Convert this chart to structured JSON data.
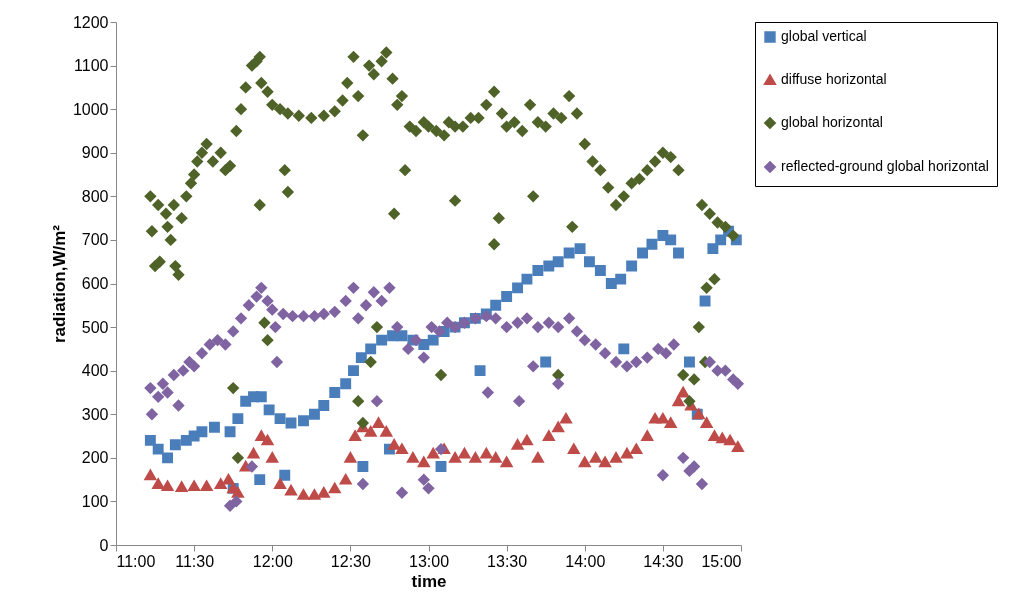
{
  "chart_data": {
    "type": "scatter",
    "xlabel": "time",
    "ylabel": "radiation,W/m²",
    "xlim": [
      11,
      15
    ],
    "ylim": [
      0,
      1200
    ],
    "xticks": [
      {
        "value": 11,
        "label": "11:00"
      },
      {
        "value": 11.5,
        "label": "11:30"
      },
      {
        "value": 12,
        "label": "12:00"
      },
      {
        "value": 12.5,
        "label": "12:30"
      },
      {
        "value": 13,
        "label": "13:00"
      },
      {
        "value": 13.5,
        "label": "13:30"
      },
      {
        "value": 14,
        "label": "14:00"
      },
      {
        "value": 14.5,
        "label": "14:30"
      },
      {
        "value": 15,
        "label": "15:00"
      }
    ],
    "yticks": [
      0,
      100,
      200,
      300,
      400,
      500,
      600,
      700,
      800,
      900,
      1000,
      1100,
      1200
    ],
    "grid": false,
    "legend": "right",
    "series": [
      {
        "name": "global vertical",
        "color": "#4a7ebb",
        "marker": "square",
        "x": [
          11.22,
          11.27,
          11.33,
          11.38,
          11.45,
          11.5,
          11.55,
          11.63,
          11.73,
          11.78,
          11.83,
          11.88,
          11.93,
          11.98,
          12.05,
          12.12,
          12.2,
          12.27,
          12.33,
          12.4,
          12.47,
          12.52,
          12.57,
          12.63,
          12.7,
          12.77,
          12.83,
          12.9,
          12.97,
          13.03,
          13.1,
          13.17,
          13.23,
          13.3,
          13.37,
          13.43,
          13.5,
          13.57,
          13.63,
          13.7,
          13.77,
          13.83,
          13.9,
          13.97,
          14.03,
          14.1,
          14.17,
          14.23,
          14.3,
          14.37,
          14.43,
          14.5,
          14.55,
          14.6,
          14.67,
          14.72,
          14.77,
          14.82,
          14.87,
          14.92,
          14.97,
          11.75,
          11.92,
          12.08,
          12.58,
          12.75,
          13.08,
          13.33,
          13.75,
          14.25
        ],
        "values": [
          240,
          220,
          200,
          230,
          240,
          250,
          260,
          270,
          260,
          290,
          330,
          340,
          340,
          310,
          290,
          280,
          285,
          300,
          320,
          350,
          370,
          400,
          430,
          450,
          470,
          480,
          480,
          470,
          460,
          470,
          490,
          500,
          510,
          520,
          530,
          550,
          570,
          590,
          610,
          630,
          640,
          650,
          670,
          680,
          650,
          630,
          600,
          610,
          640,
          670,
          690,
          710,
          700,
          670,
          420,
          300,
          560,
          680,
          700,
          720,
          700,
          130,
          150,
          160,
          180,
          220,
          180,
          400,
          420,
          450
        ]
      },
      {
        "name": "diffuse horizontal",
        "color": "#be4b48",
        "marker": "triangle",
        "x": [
          11.22,
          11.27,
          11.33,
          11.42,
          11.5,
          11.58,
          11.67,
          11.72,
          11.75,
          11.78,
          11.83,
          11.88,
          11.93,
          11.97,
          12.0,
          12.05,
          12.12,
          12.2,
          12.27,
          12.33,
          12.4,
          12.47,
          12.5,
          12.53,
          12.58,
          12.63,
          12.68,
          12.73,
          12.78,
          12.83,
          12.9,
          12.97,
          13.03,
          13.1,
          13.17,
          13.23,
          13.3,
          13.37,
          13.43,
          13.5,
          13.57,
          13.63,
          13.7,
          13.77,
          13.83,
          13.88,
          13.93,
          14.0,
          14.07,
          14.13,
          14.2,
          14.27,
          14.33,
          14.4,
          14.45,
          14.5,
          14.55,
          14.6,
          14.63,
          14.68,
          14.73,
          14.78,
          14.83,
          14.88,
          14.93,
          14.98
        ],
        "values": [
          160,
          140,
          135,
          133,
          135,
          135,
          140,
          150,
          130,
          120,
          180,
          210,
          250,
          240,
          200,
          140,
          125,
          115,
          115,
          120,
          130,
          150,
          200,
          250,
          270,
          260,
          280,
          260,
          230,
          220,
          200,
          190,
          210,
          220,
          200,
          210,
          200,
          210,
          200,
          190,
          230,
          240,
          200,
          250,
          270,
          290,
          220,
          190,
          200,
          190,
          200,
          210,
          220,
          250,
          290,
          290,
          280,
          330,
          350,
          320,
          300,
          280,
          250,
          245,
          240,
          225
        ]
      },
      {
        "name": "global horizontal",
        "color": "#4f6228",
        "marker": "diamond",
        "x": [
          11.22,
          11.23,
          11.25,
          11.27,
          11.28,
          11.32,
          11.33,
          11.35,
          11.37,
          11.38,
          11.4,
          11.42,
          11.45,
          11.48,
          11.5,
          11.52,
          11.55,
          11.58,
          11.62,
          11.67,
          11.7,
          11.73,
          11.77,
          11.8,
          11.83,
          11.87,
          11.9,
          11.92,
          11.93,
          11.97,
          12.0,
          12.05,
          12.1,
          12.17,
          12.25,
          12.33,
          12.4,
          12.45,
          12.48,
          12.52,
          12.55,
          12.58,
          12.62,
          12.65,
          12.7,
          12.73,
          12.77,
          12.8,
          12.83,
          12.88,
          12.92,
          12.97,
          13.0,
          13.05,
          13.1,
          13.13,
          13.17,
          13.22,
          13.27,
          13.32,
          13.37,
          13.42,
          13.47,
          13.5,
          13.55,
          13.6,
          13.65,
          13.7,
          13.75,
          13.8,
          13.85,
          13.9,
          13.95,
          14.0,
          14.05,
          14.1,
          14.15,
          14.2,
          14.25,
          14.3,
          14.35,
          14.4,
          14.45,
          14.5,
          14.55,
          14.6,
          14.75,
          14.8,
          14.85,
          14.9,
          14.95,
          11.75,
          11.78,
          11.92,
          11.95,
          11.97,
          12.08,
          12.1,
          12.55,
          12.58,
          12.63,
          12.67,
          12.78,
          12.85,
          13.08,
          13.17,
          13.42,
          13.45,
          13.67,
          13.83,
          13.92,
          14.63,
          14.67,
          14.7,
          14.73,
          14.77,
          14.78,
          14.83
        ],
        "values": [
          800,
          720,
          640,
          780,
          650,
          760,
          730,
          700,
          780,
          640,
          620,
          750,
          800,
          830,
          850,
          880,
          900,
          920,
          880,
          900,
          860,
          870,
          950,
          1000,
          1050,
          1100,
          1110,
          1120,
          1060,
          1040,
          1010,
          1000,
          990,
          985,
          980,
          985,
          995,
          1020,
          1060,
          1120,
          1030,
          940,
          1100,
          1080,
          1110,
          1130,
          1070,
          1010,
          1030,
          960,
          950,
          970,
          960,
          950,
          940,
          970,
          960,
          960,
          980,
          980,
          1010,
          1040,
          990,
          960,
          970,
          950,
          1010,
          970,
          960,
          990,
          980,
          1030,
          990,
          920,
          880,
          860,
          820,
          780,
          800,
          830,
          840,
          860,
          880,
          900,
          890,
          860,
          780,
          760,
          740,
          730,
          710,
          360,
          200,
          780,
          510,
          470,
          860,
          810,
          330,
          280,
          420,
          500,
          760,
          860,
          390,
          790,
          690,
          750,
          800,
          390,
          730,
          390,
          330,
          380,
          500,
          420,
          590,
          610
        ]
      },
      {
        "name": "reflected-ground global horizontal",
        "color": "#8064a2",
        "marker": "diamond",
        "x": [
          11.22,
          11.23,
          11.27,
          11.3,
          11.33,
          11.37,
          11.4,
          11.43,
          11.47,
          11.5,
          11.55,
          11.6,
          11.65,
          11.7,
          11.75,
          11.8,
          11.85,
          11.9,
          11.93,
          11.97,
          12.0,
          12.07,
          12.13,
          12.2,
          12.27,
          12.33,
          12.4,
          12.47,
          12.52,
          12.55,
          12.6,
          12.65,
          12.7,
          12.75,
          12.8,
          12.87,
          12.92,
          12.97,
          13.02,
          13.07,
          13.12,
          13.17,
          13.23,
          13.3,
          13.37,
          13.43,
          13.5,
          13.57,
          13.63,
          13.7,
          13.77,
          13.83,
          13.9,
          13.95,
          14.0,
          14.07,
          14.13,
          14.2,
          14.27,
          14.33,
          14.4,
          14.47,
          14.52,
          14.57,
          14.63,
          14.67,
          14.7,
          14.75,
          14.8,
          14.85,
          14.9,
          14.95,
          14.98,
          11.73,
          11.77,
          11.87,
          12.02,
          12.03,
          12.58,
          12.67,
          12.83,
          12.97,
          13.0,
          13.08,
          13.38,
          13.58,
          13.67,
          13.83,
          14.5
        ],
        "values": [
          360,
          300,
          340,
          370,
          350,
          390,
          320,
          400,
          420,
          410,
          440,
          460,
          470,
          460,
          490,
          520,
          550,
          570,
          590,
          560,
          540,
          530,
          525,
          525,
          525,
          530,
          535,
          560,
          590,
          520,
          550,
          580,
          560,
          590,
          500,
          450,
          470,
          430,
          500,
          490,
          510,
          500,
          510,
          520,
          525,
          520,
          500,
          510,
          520,
          500,
          510,
          500,
          520,
          490,
          470,
          460,
          440,
          420,
          410,
          420,
          430,
          450,
          440,
          460,
          200,
          170,
          180,
          140,
          420,
          400,
          400,
          380,
          370,
          90,
          100,
          180,
          500,
          420,
          140,
          330,
          120,
          150,
          130,
          220,
          350,
          330,
          410,
          370,
          160
        ]
      }
    ]
  }
}
